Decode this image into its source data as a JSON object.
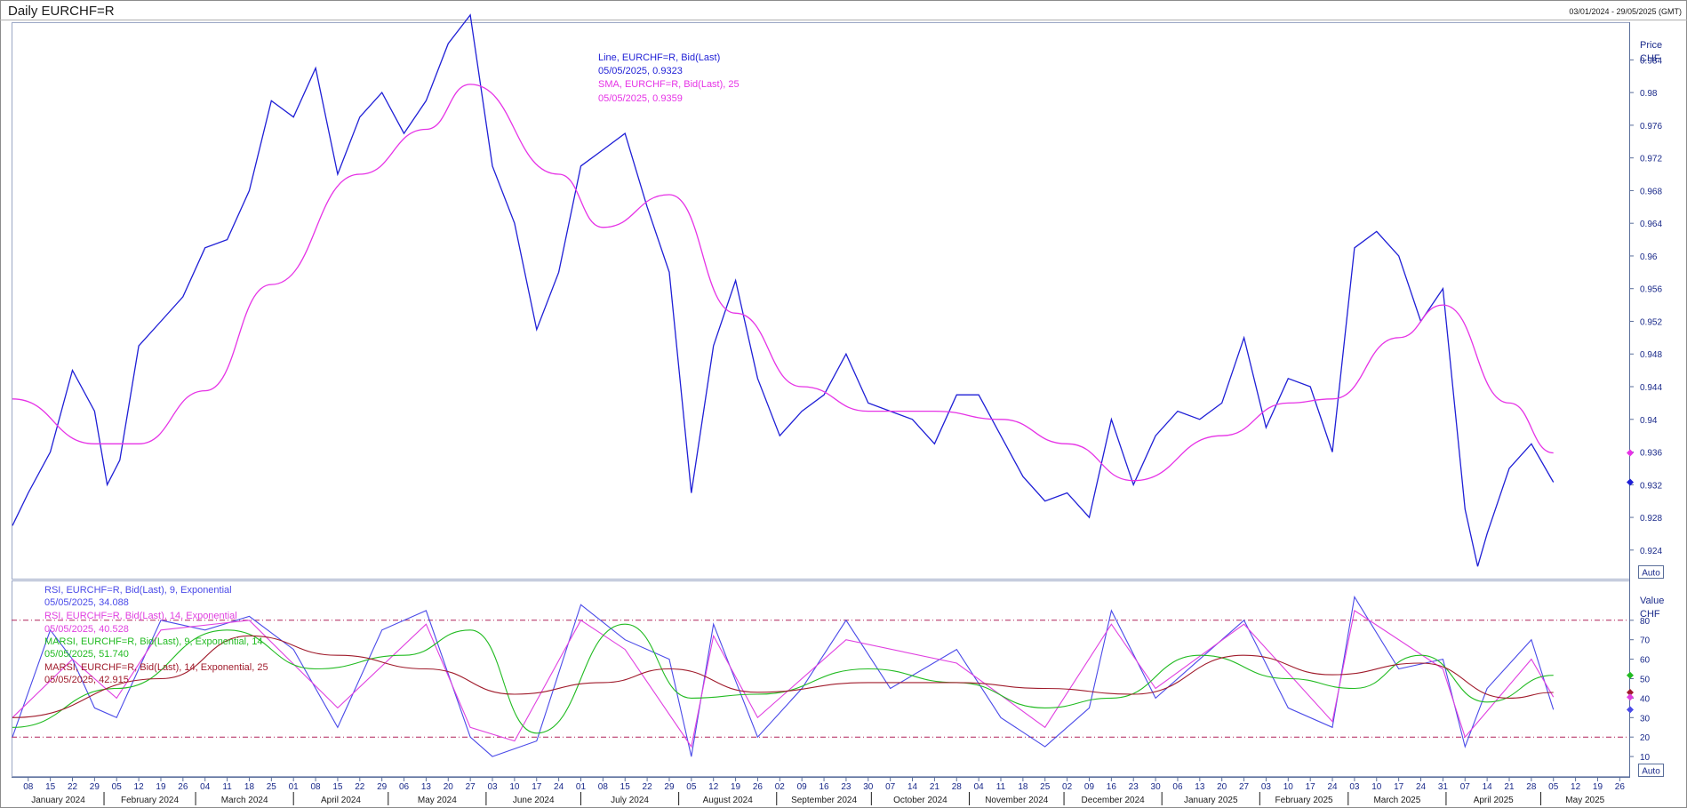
{
  "header": {
    "title": "Daily EURCHF=R",
    "date_range": "03/01/2024 - 29/05/2025 (GMT)"
  },
  "colors": {
    "price_line": "#1f1fd6",
    "sma_line": "#e633e6",
    "rsi9": "#4a4ae8",
    "rsi14": "#e040e0",
    "marsi9": "#22bb22",
    "marsi14": "#a01c2c",
    "ob_os_line": "#b0245a",
    "axis": "#5a6e9a"
  },
  "upper_panel": {
    "axis_title": "Price",
    "axis_unit": "CHF",
    "auto_label": "Auto",
    "legend": [
      {
        "name": "Line, EURCHF=R, Bid(Last)",
        "value": "05/05/2025, 0.9323",
        "color": "#1f1fd6"
      },
      {
        "name": "SMA, EURCHF=R, Bid(Last),  25",
        "value": "05/05/2025, 0.9359",
        "color": "#e633e6"
      }
    ],
    "last_values": {
      "price": 0.9323,
      "sma": 0.9359
    }
  },
  "lower_panel": {
    "axis_title": "Value",
    "axis_unit": "CHF",
    "auto_label": "Auto",
    "legend": [
      {
        "name": "RSI, EURCHF=R, Bid(Last),  9, Exponential",
        "value": "05/05/2025, 34.088",
        "color": "#4a4ae8"
      },
      {
        "name": "RSI, EURCHF=R, Bid(Last),  14, Exponential",
        "value": "05/05/2025, 40.528",
        "color": "#e040e0"
      },
      {
        "name": "MARSI, EURCHF=R, Bid(Last),  9, Exponential, 14",
        "value": "05/05/2025, 51.740",
        "color": "#22bb22"
      },
      {
        "name": "MARSI, EURCHF=R, Bid(Last),  14, Exponential, 25",
        "value": "05/05/2025, 42.915",
        "color": "#a01c2c"
      }
    ],
    "last_values": {
      "rsi9": 34.088,
      "rsi14": 40.528,
      "marsi9": 51.74,
      "marsi14": 42.915
    },
    "overbought": 80,
    "oversold": 20
  },
  "chart_data": [
    {
      "type": "line",
      "x_start": "2024-01-03",
      "x_end": "2025-05-29",
      "ylim": [
        0.9205,
        0.9885
      ],
      "yticks": [
        "0.924",
        "0.928",
        "0.932",
        "0.936",
        "0.94",
        "0.944",
        "0.948",
        "0.952",
        "0.956",
        "0.96",
        "0.964",
        "0.968",
        "0.972",
        "0.976",
        "0.98",
        "0.984"
      ],
      "series": [
        {
          "name": "Line, EURCHF=R, Bid(Last)",
          "x": [
            "2024-01-03",
            "2024-01-08",
            "2024-01-15",
            "2024-01-22",
            "2024-01-29",
            "2024-02-02",
            "2024-02-06",
            "2024-02-12",
            "2024-02-19",
            "2024-02-26",
            "2024-03-04",
            "2024-03-11",
            "2024-03-18",
            "2024-03-25",
            "2024-04-01",
            "2024-04-08",
            "2024-04-15",
            "2024-04-22",
            "2024-04-29",
            "2024-05-06",
            "2024-05-13",
            "2024-05-20",
            "2024-05-27",
            "2024-06-03",
            "2024-06-10",
            "2024-06-17",
            "2024-06-24",
            "2024-07-01",
            "2024-07-08",
            "2024-07-15",
            "2024-07-22",
            "2024-07-29",
            "2024-08-05",
            "2024-08-12",
            "2024-08-19",
            "2024-08-26",
            "2024-09-02",
            "2024-09-09",
            "2024-09-16",
            "2024-09-23",
            "2024-09-30",
            "2024-10-07",
            "2024-10-14",
            "2024-10-21",
            "2024-10-28",
            "2024-11-04",
            "2024-11-11",
            "2024-11-18",
            "2024-11-25",
            "2024-12-02",
            "2024-12-09",
            "2024-12-16",
            "2024-12-23",
            "2024-12-30",
            "2025-01-06",
            "2025-01-13",
            "2025-01-20",
            "2025-01-27",
            "2025-02-03",
            "2025-02-10",
            "2025-02-17",
            "2025-02-24",
            "2025-03-03",
            "2025-03-10",
            "2025-03-17",
            "2025-03-24",
            "2025-03-31",
            "2025-04-07",
            "2025-04-11",
            "2025-04-14",
            "2025-04-21",
            "2025-04-28",
            "2025-05-05"
          ],
          "y": [
            0.927,
            0.931,
            0.936,
            0.946,
            0.941,
            0.932,
            0.935,
            0.949,
            0.952,
            0.955,
            0.961,
            0.962,
            0.968,
            0.979,
            0.977,
            0.983,
            0.97,
            0.977,
            0.98,
            0.975,
            0.979,
            0.986,
            0.9895,
            0.971,
            0.964,
            0.951,
            0.958,
            0.971,
            0.973,
            0.975,
            0.966,
            0.958,
            0.931,
            0.949,
            0.957,
            0.945,
            0.938,
            0.941,
            0.943,
            0.948,
            0.942,
            0.941,
            0.94,
            0.937,
            0.943,
            0.943,
            0.938,
            0.933,
            0.93,
            0.931,
            0.928,
            0.94,
            0.932,
            0.938,
            0.941,
            0.94,
            0.942,
            0.95,
            0.939,
            0.945,
            0.944,
            0.936,
            0.961,
            0.963,
            0.96,
            0.952,
            0.956,
            0.929,
            0.922,
            0.926,
            0.934,
            0.937,
            0.9323
          ]
        },
        {
          "name": "SMA, EURCHF=R, Bid(Last),  25",
          "x": [
            "2024-01-03",
            "2024-01-29",
            "2024-02-12",
            "2024-03-04",
            "2024-03-25",
            "2024-04-22",
            "2024-05-13",
            "2024-05-27",
            "2024-06-24",
            "2024-07-08",
            "2024-07-29",
            "2024-08-19",
            "2024-09-09",
            "2024-09-30",
            "2024-10-21",
            "2024-11-11",
            "2024-12-02",
            "2024-12-23",
            "2025-01-20",
            "2025-02-10",
            "2025-02-24",
            "2025-03-17",
            "2025-03-31",
            "2025-04-21",
            "2025-05-05"
          ],
          "y": [
            0.9425,
            0.937,
            0.937,
            0.9435,
            0.9565,
            0.97,
            0.9755,
            0.981,
            0.97,
            0.9635,
            0.9675,
            0.953,
            0.944,
            0.941,
            0.941,
            0.94,
            0.937,
            0.9325,
            0.938,
            0.942,
            0.9425,
            0.95,
            0.954,
            0.942,
            0.9359
          ]
        }
      ]
    },
    {
      "type": "line",
      "x_start": "2024-01-03",
      "x_end": "2025-05-29",
      "ylim": [
        0,
        100
      ],
      "yticks": [
        "10",
        "20",
        "30",
        "40",
        "50",
        "60",
        "70",
        "80"
      ],
      "series": [
        {
          "name": "RSI, EURCHF=R, Bid(Last),  9, Exponential",
          "x": [
            "2024-01-03",
            "2024-01-15",
            "2024-01-22",
            "2024-01-29",
            "2024-02-05",
            "2024-02-19",
            "2024-03-04",
            "2024-03-18",
            "2024-04-01",
            "2024-04-15",
            "2024-04-29",
            "2024-05-13",
            "2024-05-27",
            "2024-06-03",
            "2024-06-17",
            "2024-07-01",
            "2024-07-15",
            "2024-07-29",
            "2024-08-05",
            "2024-08-12",
            "2024-08-26",
            "2024-09-09",
            "2024-09-23",
            "2024-10-07",
            "2024-10-28",
            "2024-11-11",
            "2024-11-25",
            "2024-12-09",
            "2024-12-16",
            "2024-12-30",
            "2025-01-13",
            "2025-01-27",
            "2025-02-10",
            "2025-02-24",
            "2025-03-03",
            "2025-03-17",
            "2025-03-31",
            "2025-04-07",
            "2025-04-14",
            "2025-04-28",
            "2025-05-05"
          ],
          "y": [
            20,
            75,
            60,
            35,
            30,
            80,
            75,
            82,
            65,
            25,
            75,
            85,
            20,
            10,
            18,
            88,
            70,
            60,
            10,
            78,
            20,
            45,
            80,
            45,
            65,
            30,
            15,
            35,
            85,
            40,
            60,
            80,
            35,
            25,
            92,
            55,
            60,
            15,
            45,
            70,
            34.088
          ]
        },
        {
          "name": "RSI, EURCHF=R, Bid(Last),  14, Exponential",
          "x": [
            "2024-01-03",
            "2024-01-22",
            "2024-02-05",
            "2024-02-19",
            "2024-03-18",
            "2024-04-15",
            "2024-05-13",
            "2024-05-27",
            "2024-06-10",
            "2024-07-01",
            "2024-07-15",
            "2024-08-05",
            "2024-08-12",
            "2024-08-26",
            "2024-09-23",
            "2024-10-28",
            "2024-11-25",
            "2024-12-16",
            "2024-12-30",
            "2025-01-27",
            "2025-02-24",
            "2025-03-03",
            "2025-03-31",
            "2025-04-07",
            "2025-04-28",
            "2025-05-05"
          ],
          "y": [
            30,
            60,
            40,
            75,
            80,
            35,
            78,
            25,
            18,
            80,
            65,
            15,
            72,
            30,
            70,
            58,
            25,
            78,
            45,
            78,
            28,
            85,
            55,
            20,
            60,
            40.528
          ]
        },
        {
          "name": "MARSI, EURCHF=R, Bid(Last),  9, Exponential, 14",
          "x": [
            "2024-01-03",
            "2024-02-05",
            "2024-03-11",
            "2024-04-08",
            "2024-05-06",
            "2024-05-27",
            "2024-06-17",
            "2024-07-15",
            "2024-08-05",
            "2024-08-26",
            "2024-09-30",
            "2024-10-28",
            "2024-11-25",
            "2024-12-16",
            "2025-01-13",
            "2025-02-10",
            "2025-03-03",
            "2025-03-24",
            "2025-04-14",
            "2025-05-05"
          ],
          "y": [
            25,
            45,
            75,
            55,
            62,
            75,
            22,
            78,
            40,
            42,
            55,
            48,
            35,
            40,
            62,
            50,
            45,
            62,
            38,
            51.74
          ]
        },
        {
          "name": "MARSI, EURCHF=R, Bid(Last),  14, Exponential, 25",
          "x": [
            "2024-01-03",
            "2024-02-19",
            "2024-03-18",
            "2024-04-15",
            "2024-05-13",
            "2024-06-10",
            "2024-07-08",
            "2024-07-29",
            "2024-08-26",
            "2024-09-30",
            "2024-10-28",
            "2024-11-25",
            "2024-12-23",
            "2025-01-27",
            "2025-02-24",
            "2025-03-24",
            "2025-04-21",
            "2025-05-05"
          ],
          "y": [
            30,
            50,
            72,
            62,
            55,
            42,
            48,
            55,
            43,
            48,
            48,
            45,
            42,
            62,
            52,
            58,
            40,
            42.915
          ]
        }
      ]
    }
  ],
  "x_axis": {
    "day_ticks": [
      {
        "date": "2024-01-08",
        "label": "08"
      },
      {
        "date": "2024-01-15",
        "label": "15"
      },
      {
        "date": "2024-01-22",
        "label": "22"
      },
      {
        "date": "2024-01-29",
        "label": "29"
      },
      {
        "date": "2024-02-05",
        "label": "05"
      },
      {
        "date": "2024-02-12",
        "label": "12"
      },
      {
        "date": "2024-02-19",
        "label": "19"
      },
      {
        "date": "2024-02-26",
        "label": "26"
      },
      {
        "date": "2024-03-04",
        "label": "04"
      },
      {
        "date": "2024-03-11",
        "label": "11"
      },
      {
        "date": "2024-03-18",
        "label": "18"
      },
      {
        "date": "2024-03-25",
        "label": "25"
      },
      {
        "date": "2024-04-01",
        "label": "01"
      },
      {
        "date": "2024-04-08",
        "label": "08"
      },
      {
        "date": "2024-04-15",
        "label": "15"
      },
      {
        "date": "2024-04-22",
        "label": "22"
      },
      {
        "date": "2024-04-29",
        "label": "29"
      },
      {
        "date": "2024-05-06",
        "label": "06"
      },
      {
        "date": "2024-05-13",
        "label": "13"
      },
      {
        "date": "2024-05-20",
        "label": "20"
      },
      {
        "date": "2024-05-27",
        "label": "27"
      },
      {
        "date": "2024-06-03",
        "label": "03"
      },
      {
        "date": "2024-06-10",
        "label": "10"
      },
      {
        "date": "2024-06-17",
        "label": "17"
      },
      {
        "date": "2024-06-24",
        "label": "24"
      },
      {
        "date": "2024-07-01",
        "label": "01"
      },
      {
        "date": "2024-07-08",
        "label": "08"
      },
      {
        "date": "2024-07-15",
        "label": "15"
      },
      {
        "date": "2024-07-22",
        "label": "22"
      },
      {
        "date": "2024-07-29",
        "label": "29"
      },
      {
        "date": "2024-08-05",
        "label": "05"
      },
      {
        "date": "2024-08-12",
        "label": "12"
      },
      {
        "date": "2024-08-19",
        "label": "19"
      },
      {
        "date": "2024-08-26",
        "label": "26"
      },
      {
        "date": "2024-09-02",
        "label": "02"
      },
      {
        "date": "2024-09-09",
        "label": "09"
      },
      {
        "date": "2024-09-16",
        "label": "16"
      },
      {
        "date": "2024-09-23",
        "label": "23"
      },
      {
        "date": "2024-09-30",
        "label": "30"
      },
      {
        "date": "2024-10-07",
        "label": "07"
      },
      {
        "date": "2024-10-14",
        "label": "14"
      },
      {
        "date": "2024-10-21",
        "label": "21"
      },
      {
        "date": "2024-10-28",
        "label": "28"
      },
      {
        "date": "2024-11-04",
        "label": "04"
      },
      {
        "date": "2024-11-11",
        "label": "11"
      },
      {
        "date": "2024-11-18",
        "label": "18"
      },
      {
        "date": "2024-11-25",
        "label": "25"
      },
      {
        "date": "2024-12-02",
        "label": "02"
      },
      {
        "date": "2024-12-09",
        "label": "09"
      },
      {
        "date": "2024-12-16",
        "label": "16"
      },
      {
        "date": "2024-12-23",
        "label": "23"
      },
      {
        "date": "2024-12-30",
        "label": "30"
      },
      {
        "date": "2025-01-06",
        "label": "06"
      },
      {
        "date": "2025-01-13",
        "label": "13"
      },
      {
        "date": "2025-01-20",
        "label": "20"
      },
      {
        "date": "2025-01-27",
        "label": "27"
      },
      {
        "date": "2025-02-03",
        "label": "03"
      },
      {
        "date": "2025-02-10",
        "label": "10"
      },
      {
        "date": "2025-02-17",
        "label": "17"
      },
      {
        "date": "2025-02-24",
        "label": "24"
      },
      {
        "date": "2025-03-03",
        "label": "03"
      },
      {
        "date": "2025-03-10",
        "label": "10"
      },
      {
        "date": "2025-03-17",
        "label": "17"
      },
      {
        "date": "2025-03-24",
        "label": "24"
      },
      {
        "date": "2025-03-31",
        "label": "31"
      },
      {
        "date": "2025-04-07",
        "label": "07"
      },
      {
        "date": "2025-04-14",
        "label": "14"
      },
      {
        "date": "2025-04-21",
        "label": "21"
      },
      {
        "date": "2025-04-28",
        "label": "28"
      },
      {
        "date": "2025-05-05",
        "label": "05"
      },
      {
        "date": "2025-05-12",
        "label": "12"
      },
      {
        "date": "2025-05-19",
        "label": "19"
      },
      {
        "date": "2025-05-26",
        "label": "26"
      }
    ],
    "months": [
      {
        "start": "2024-01-01",
        "end": "2024-02-01",
        "label": "January 2024"
      },
      {
        "start": "2024-02-01",
        "end": "2024-03-01",
        "label": "February 2024"
      },
      {
        "start": "2024-03-01",
        "end": "2024-04-01",
        "label": "March 2024"
      },
      {
        "start": "2024-04-01",
        "end": "2024-05-01",
        "label": "April 2024"
      },
      {
        "start": "2024-05-01",
        "end": "2024-06-01",
        "label": "May 2024"
      },
      {
        "start": "2024-06-01",
        "end": "2024-07-01",
        "label": "June 2024"
      },
      {
        "start": "2024-07-01",
        "end": "2024-08-01",
        "label": "July 2024"
      },
      {
        "start": "2024-08-01",
        "end": "2024-09-01",
        "label": "August 2024"
      },
      {
        "start": "2024-09-01",
        "end": "2024-10-01",
        "label": "September 2024"
      },
      {
        "start": "2024-10-01",
        "end": "2024-11-01",
        "label": "October 2024"
      },
      {
        "start": "2024-11-01",
        "end": "2024-12-01",
        "label": "November 2024"
      },
      {
        "start": "2024-12-01",
        "end": "2025-01-01",
        "label": "December 2024"
      },
      {
        "start": "2025-01-01",
        "end": "2025-02-01",
        "label": "January 2025"
      },
      {
        "start": "2025-02-01",
        "end": "2025-03-01",
        "label": "February 2025"
      },
      {
        "start": "2025-03-01",
        "end": "2025-04-01",
        "label": "March 2025"
      },
      {
        "start": "2025-04-01",
        "end": "2025-05-01",
        "label": "April 2025"
      },
      {
        "start": "2025-05-01",
        "end": "2025-06-01",
        "label": "May 2025"
      }
    ]
  }
}
